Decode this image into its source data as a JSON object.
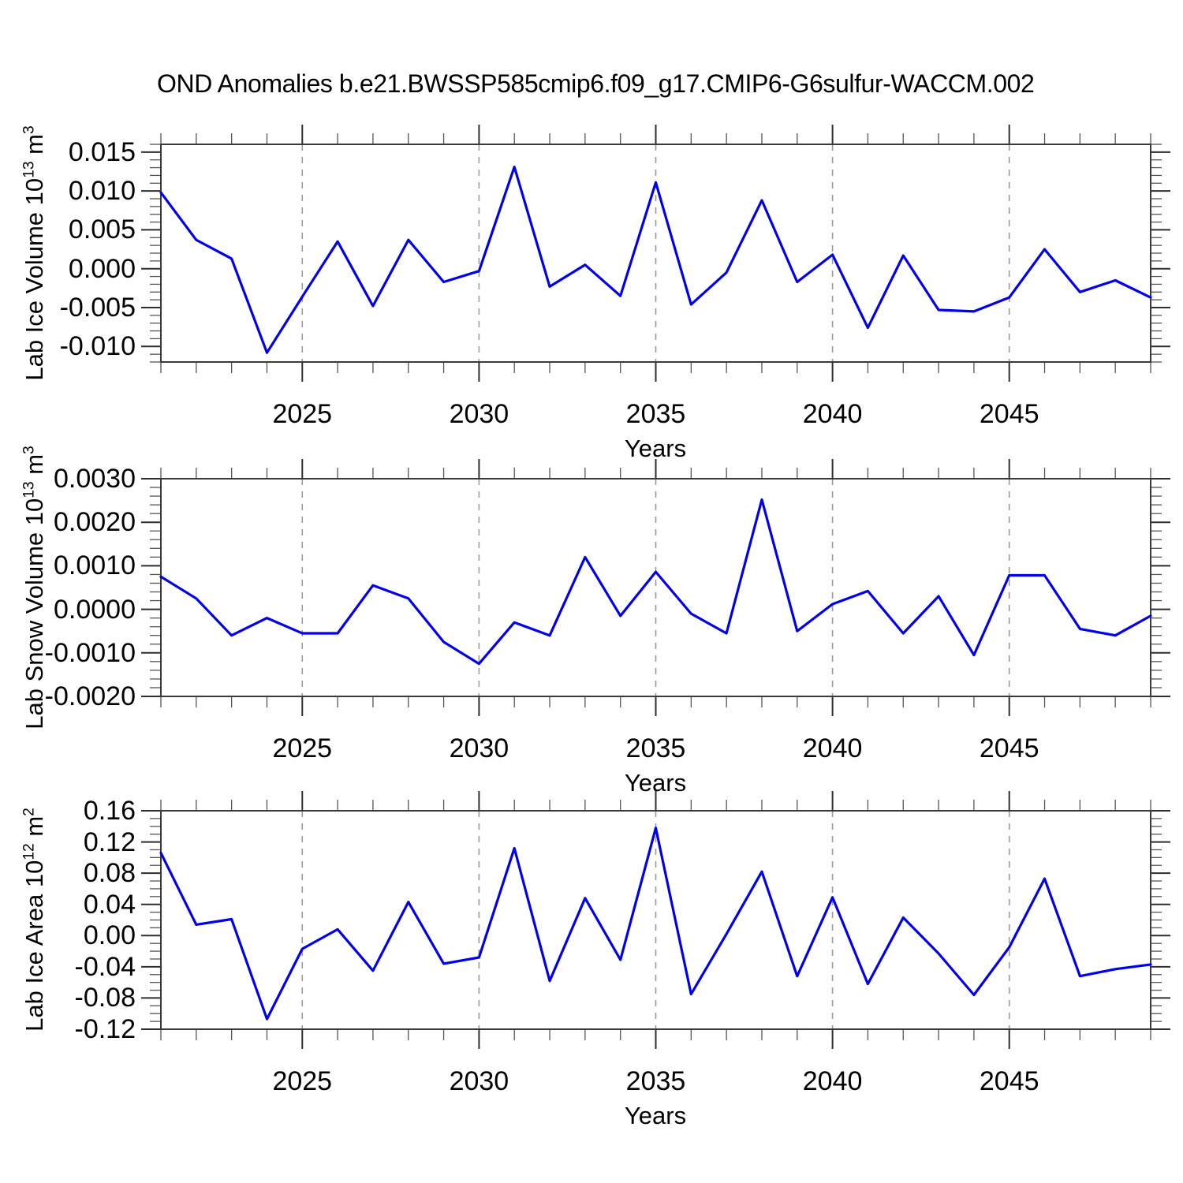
{
  "title": "OND Anomalies b.e21.BWSSP585cmip6.f09_g17.CMIP6-G6sulfur-WACCM.002",
  "colors": {
    "line": "#0000ee",
    "grid": "#9a9a9a",
    "axis": "#3a3a3a",
    "text": "#000000",
    "background": "#ffffff"
  },
  "chart_data": [
    {
      "type": "line",
      "name": "lab-ice-volume",
      "ylabel_text": "Lab Ice Volume 10^13 m^3",
      "ylabel": {
        "pre": "Lab Ice Volume 10",
        "sup1": "13",
        "mid": " m",
        "sup2": "3"
      },
      "xlabel": "Years",
      "line_color": "#0000ee",
      "xlim": [
        2021,
        2049
      ],
      "ylim": [
        -0.012,
        0.016
      ],
      "ytick_major": 0.005,
      "ytick_minor": 0.001,
      "ytick_decimals": 3,
      "ytick_labels": [
        "0.015",
        "0.010",
        "0.005",
        "0.000",
        "-0.005",
        "-0.010"
      ],
      "xtick_majors": [
        2025,
        2030,
        2035,
        2040,
        2045
      ],
      "xtick_labels": [
        "2025",
        "2030",
        "2035",
        "2040",
        "2045"
      ],
      "grid_years": [
        2025,
        2030,
        2035,
        2040,
        2045
      ],
      "grid_style": "dashed",
      "years": [
        2021,
        2022,
        2023,
        2024,
        2025,
        2026,
        2027,
        2028,
        2029,
        2030,
        2031,
        2032,
        2033,
        2034,
        2035,
        2036,
        2037,
        2038,
        2039,
        2040,
        2041,
        2042,
        2043,
        2044,
        2045,
        2046,
        2047,
        2048,
        2049
      ],
      "values": [
        0.0098,
        0.0037,
        0.0013,
        -0.0108,
        -0.0036,
        0.0035,
        -0.0048,
        0.0037,
        -0.0017,
        -0.0003,
        0.0131,
        -0.0023,
        0.0005,
        -0.0035,
        0.0111,
        -0.0046,
        -0.0005,
        0.0088,
        -0.0017,
        0.0018,
        -0.0076,
        0.0017,
        -0.0053,
        -0.0055,
        -0.0037,
        0.0025,
        -0.003,
        -0.0015,
        -0.0037
      ]
    },
    {
      "type": "line",
      "name": "lab-snow-volume",
      "ylabel_text": "Lab Snow Volume 10^13 m^3",
      "ylabel": {
        "pre": "Lab Snow Volume 10",
        "sup1": "13",
        "mid": " m",
        "sup2": "3"
      },
      "xlabel": "Years",
      "line_color": "#0000ee",
      "xlim": [
        2021,
        2049
      ],
      "ylim": [
        -0.002,
        0.003
      ],
      "ytick_major": 0.001,
      "ytick_minor": 0.0002,
      "ytick_decimals": 4,
      "ytick_labels": [
        "0.0030",
        "0.0020",
        "0.0010",
        "0.0000",
        "-0.0010",
        "-0.0020"
      ],
      "xtick_majors": [
        2025,
        2030,
        2035,
        2040,
        2045
      ],
      "xtick_labels": [
        "2025",
        "2030",
        "2035",
        "2040",
        "2045"
      ],
      "grid_years": [
        2025,
        2030,
        2035,
        2040,
        2045
      ],
      "grid_style": "dashed",
      "years": [
        2021,
        2022,
        2023,
        2024,
        2025,
        2026,
        2027,
        2028,
        2029,
        2030,
        2031,
        2032,
        2033,
        2034,
        2035,
        2036,
        2037,
        2038,
        2039,
        2040,
        2041,
        2042,
        2043,
        2044,
        2045,
        2046,
        2047,
        2048,
        2049
      ],
      "values": [
        0.00075,
        0.00025,
        -0.0006,
        -0.0002,
        -0.00055,
        -0.00055,
        0.00055,
        0.00025,
        -0.00075,
        -0.00125,
        -0.0003,
        -0.0006,
        0.0012,
        -0.00015,
        0.00086,
        -0.0001,
        -0.00055,
        0.00252,
        -0.0005,
        0.00012,
        0.00042,
        -0.00055,
        0.0003,
        -0.00105,
        0.00078,
        0.00078,
        -0.00045,
        -0.0006,
        -0.00015
      ]
    },
    {
      "type": "line",
      "name": "lab-ice-area",
      "ylabel_text": "Lab Ice Area 10^12 m^2",
      "ylabel": {
        "pre": "Lab Ice Area 10",
        "sup1": "12",
        "mid": " m",
        "sup2": "2"
      },
      "xlabel": "Years",
      "line_color": "#0000ee",
      "xlim": [
        2021,
        2049
      ],
      "ylim": [
        -0.12,
        0.16
      ],
      "ytick_major": 0.04,
      "ytick_minor": 0.01,
      "ytick_decimals": 2,
      "ytick_labels": [
        "0.16",
        "0.12",
        "0.08",
        "0.04",
        "0.00",
        "-0.04",
        "-0.08",
        "-0.12"
      ],
      "xtick_majors": [
        2025,
        2030,
        2035,
        2040,
        2045
      ],
      "xtick_labels": [
        "2025",
        "2030",
        "2035",
        "2040",
        "2045"
      ],
      "grid_years": [
        2025,
        2030,
        2035,
        2040,
        2045
      ],
      "grid_style": "dashed",
      "years": [
        2021,
        2022,
        2023,
        2024,
        2025,
        2026,
        2027,
        2028,
        2029,
        2030,
        2031,
        2032,
        2033,
        2034,
        2035,
        2036,
        2037,
        2038,
        2039,
        2040,
        2041,
        2042,
        2043,
        2044,
        2045,
        2046,
        2047,
        2048,
        2049
      ],
      "values": [
        0.106,
        0.014,
        0.021,
        -0.107,
        -0.017,
        0.008,
        -0.045,
        0.043,
        -0.036,
        -0.028,
        0.112,
        -0.058,
        0.048,
        -0.031,
        0.138,
        -0.075,
        0.002,
        0.082,
        -0.052,
        0.049,
        -0.062,
        0.023,
        -0.023,
        -0.076,
        -0.015,
        0.073,
        -0.052,
        -0.043,
        -0.037
      ]
    }
  ]
}
